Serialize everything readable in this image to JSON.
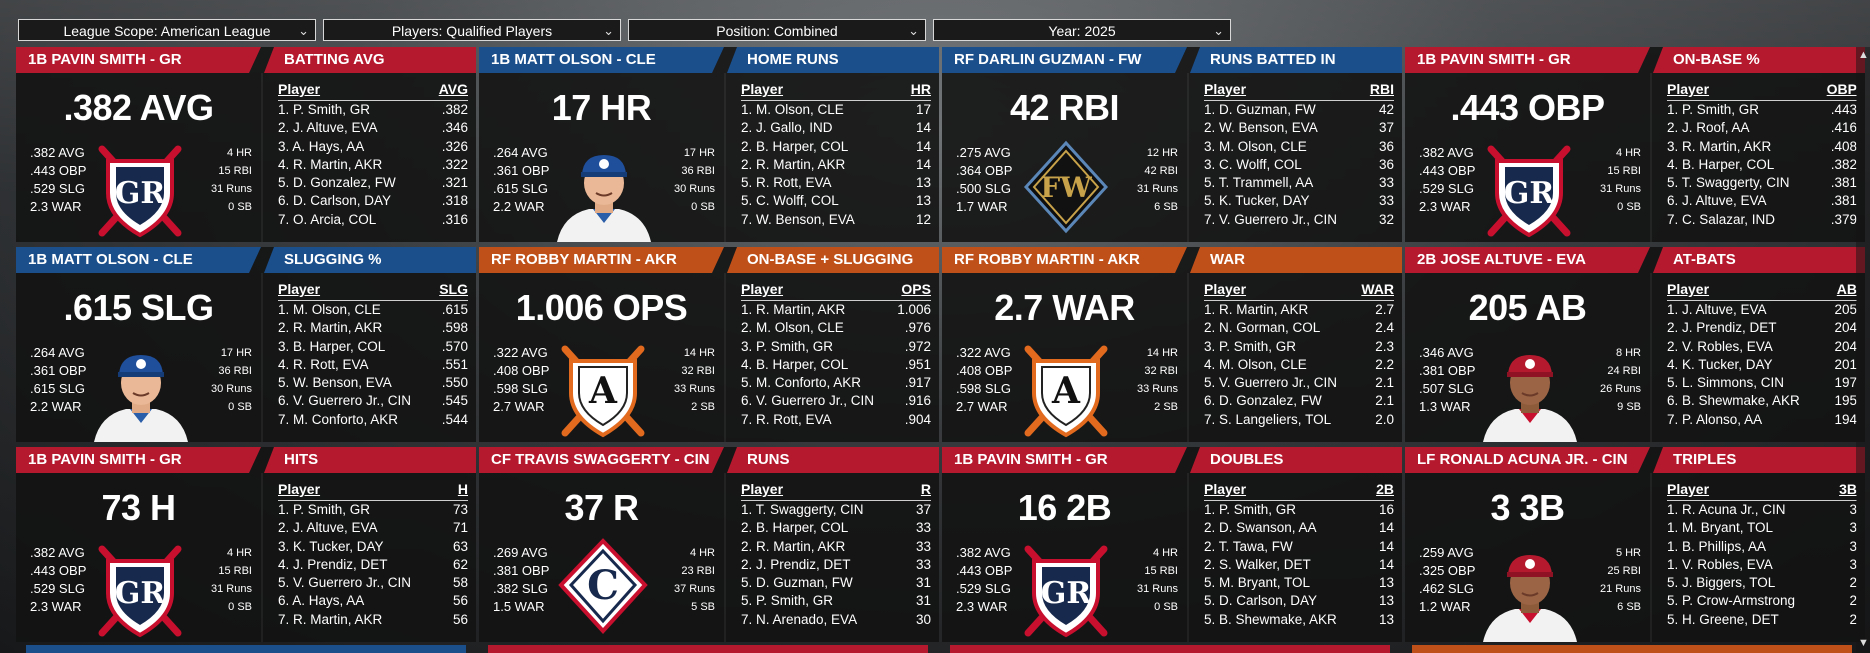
{
  "filters": {
    "league_scope": "League Scope: American League",
    "players": "Players: Qualified Players",
    "position": "Position: Combined",
    "year": "Year: 2025"
  },
  "colors": {
    "red": "#b5192e",
    "blue": "#1a4f8c",
    "orange": "#c0501a",
    "gr_navy": "#17294d",
    "gr_red": "#c8102e"
  },
  "cards": [
    {
      "player_header": "1B PAVIN SMITH - GR",
      "category": "BATTING AVG",
      "big_stat": ".382 AVG",
      "stats_left": [
        ".382 AVG",
        ".443 OBP",
        ".529 SLG",
        "2.3 WAR"
      ],
      "stats_right": [
        "4 HR",
        "15 RBI",
        "31 Runs",
        "0 SB"
      ],
      "stat_col": "AVG",
      "logo": "GR",
      "header_color": "red",
      "leaders": [
        [
          "1. P. Smith, GR",
          ".382"
        ],
        [
          "2. J. Altuve, EVA",
          ".346"
        ],
        [
          "3. A. Hays, AA",
          ".326"
        ],
        [
          "4. R. Martin, AKR",
          ".322"
        ],
        [
          "5. D. Gonzalez, FW",
          ".321"
        ],
        [
          "6. D. Carlson, DAY",
          ".318"
        ],
        [
          "7. O. Arcia, COL",
          ".316"
        ]
      ]
    },
    {
      "player_header": "1B MATT OLSON - CLE",
      "category": "HOME RUNS",
      "big_stat": "17 HR",
      "stats_left": [
        ".264 AVG",
        ".361 OBP",
        ".615 SLG",
        "2.2 WAR"
      ],
      "stats_right": [
        "17 HR",
        "36 RBI",
        "30 Runs",
        "0 SB"
      ],
      "stat_col": "HR",
      "logo": "face-blue",
      "header_color": "blue",
      "leaders": [
        [
          "1. M. Olson, CLE",
          "17"
        ],
        [
          "2. J. Gallo, IND",
          "14"
        ],
        [
          "2. B. Harper, COL",
          "14"
        ],
        [
          "2. R. Martin, AKR",
          "14"
        ],
        [
          "5. R. Rott, EVA",
          "13"
        ],
        [
          "5. C. Wolff, COL",
          "13"
        ],
        [
          "7. W. Benson, EVA",
          "12"
        ]
      ]
    },
    {
      "player_header": "RF DARLIN GUZMAN - FW",
      "category": "RUNS BATTED IN",
      "big_stat": "42 RBI",
      "stats_left": [
        ".275 AVG",
        ".364 OBP",
        ".500 SLG",
        "1.7 WAR"
      ],
      "stats_right": [
        "12 HR",
        "42 RBI",
        "31 Runs",
        "6 SB"
      ],
      "stat_col": "RBI",
      "logo": "FW",
      "header_color": "blue",
      "leaders": [
        [
          "1. D. Guzman, FW",
          "42"
        ],
        [
          "2. W. Benson, EVA",
          "37"
        ],
        [
          "3. M. Olson, CLE",
          "36"
        ],
        [
          "3. C. Wolff, COL",
          "36"
        ],
        [
          "5. T. Trammell, AA",
          "33"
        ],
        [
          "5. K. Tucker, DAY",
          "33"
        ],
        [
          "7. V. Guerrero Jr., CIN",
          "32"
        ]
      ]
    },
    {
      "player_header": "1B PAVIN SMITH - GR",
      "category": "ON-BASE %",
      "big_stat": ".443 OBP",
      "stats_left": [
        ".382 AVG",
        ".443 OBP",
        ".529 SLG",
        "2.3 WAR"
      ],
      "stats_right": [
        "4 HR",
        "15 RBI",
        "31 Runs",
        "0 SB"
      ],
      "stat_col": "OBP",
      "logo": "GR",
      "header_color": "red",
      "leaders": [
        [
          "1. P. Smith, GR",
          ".443"
        ],
        [
          "2. J. Roof, AA",
          ".416"
        ],
        [
          "3. R. Martin, AKR",
          ".408"
        ],
        [
          "4. B. Harper, COL",
          ".382"
        ],
        [
          "5. T. Swaggerty, CIN",
          ".381"
        ],
        [
          "6. J. Altuve, EVA",
          ".381"
        ],
        [
          "7. C. Salazar, IND",
          ".379"
        ]
      ]
    },
    {
      "player_header": "1B MATT OLSON - CLE",
      "category": "SLUGGING %",
      "big_stat": ".615 SLG",
      "stats_left": [
        ".264 AVG",
        ".361 OBP",
        ".615 SLG",
        "2.2 WAR"
      ],
      "stats_right": [
        "17 HR",
        "36 RBI",
        "30 Runs",
        "0 SB"
      ],
      "stat_col": "SLG",
      "logo": "face-blue",
      "header_color": "blue",
      "leaders": [
        [
          "1. M. Olson, CLE",
          ".615"
        ],
        [
          "2. R. Martin, AKR",
          ".598"
        ],
        [
          "3. B. Harper, COL",
          ".570"
        ],
        [
          "4. R. Rott, EVA",
          ".551"
        ],
        [
          "5. W. Benson, EVA",
          ".550"
        ],
        [
          "6. V. Guerrero Jr., CIN",
          ".545"
        ],
        [
          "7. M. Conforto, AKR",
          ".544"
        ]
      ]
    },
    {
      "player_header": "RF ROBBY MARTIN - AKR",
      "category": "ON-BASE + SLUGGING",
      "big_stat": "1.006 OPS",
      "stats_left": [
        ".322 AVG",
        ".408 OBP",
        ".598 SLG",
        "2.7 WAR"
      ],
      "stats_right": [
        "14 HR",
        "32 RBI",
        "33 Runs",
        "2 SB"
      ],
      "stat_col": "OPS",
      "logo": "A",
      "header_color": "orange",
      "leaders": [
        [
          "1. R. Martin, AKR",
          "1.006"
        ],
        [
          "2. M. Olson, CLE",
          ".976"
        ],
        [
          "3. P. Smith, GR",
          ".972"
        ],
        [
          "4. B. Harper, COL",
          ".951"
        ],
        [
          "5. M. Conforto, AKR",
          ".917"
        ],
        [
          "6. V. Guerrero Jr., CIN",
          ".916"
        ],
        [
          "7. R. Rott, EVA",
          ".904"
        ]
      ]
    },
    {
      "player_header": "RF ROBBY MARTIN - AKR",
      "category": "WAR",
      "big_stat": "2.7 WAR",
      "stats_left": [
        ".322 AVG",
        ".408 OBP",
        ".598 SLG",
        "2.7 WAR"
      ],
      "stats_right": [
        "14 HR",
        "32 RBI",
        "33 Runs",
        "2 SB"
      ],
      "stat_col": "WAR",
      "logo": "A",
      "header_color": "orange",
      "leaders": [
        [
          "1. R. Martin, AKR",
          "2.7"
        ],
        [
          "2. N. Gorman, COL",
          "2.4"
        ],
        [
          "3. P. Smith, GR",
          "2.3"
        ],
        [
          "4. M. Olson, CLE",
          "2.2"
        ],
        [
          "5. V. Guerrero Jr., CIN",
          "2.1"
        ],
        [
          "6. D. Gonzalez, FW",
          "2.1"
        ],
        [
          "7. S. Langeliers, TOL",
          "2.0"
        ]
      ]
    },
    {
      "player_header": "2B JOSE ALTUVE - EVA",
      "category": "AT-BATS",
      "big_stat": "205 AB",
      "stats_left": [
        ".346 AVG",
        ".381 OBP",
        ".507 SLG",
        "1.3 WAR"
      ],
      "stats_right": [
        "8 HR",
        "24 RBI",
        "26 Runs",
        "9 SB"
      ],
      "stat_col": "AB",
      "logo": "face-red",
      "header_color": "red",
      "leaders": [
        [
          "1. J. Altuve, EVA",
          "205"
        ],
        [
          "2. J. Prendiz, DET",
          "204"
        ],
        [
          "2. V. Robles, EVA",
          "204"
        ],
        [
          "4. K. Tucker, DAY",
          "201"
        ],
        [
          "5. L. Simmons, CIN",
          "197"
        ],
        [
          "6. B. Shewmake, AKR",
          "195"
        ],
        [
          "7. P. Alonso, AA",
          "194"
        ]
      ]
    },
    {
      "player_header": "1B PAVIN SMITH - GR",
      "category": "HITS",
      "big_stat": "73 H",
      "stats_left": [
        ".382 AVG",
        ".443 OBP",
        ".529 SLG",
        "2.3 WAR"
      ],
      "stats_right": [
        "4 HR",
        "15 RBI",
        "31 Runs",
        "0 SB"
      ],
      "stat_col": "H",
      "logo": "GR",
      "header_color": "red",
      "leaders": [
        [
          "1. P. Smith, GR",
          "73"
        ],
        [
          "2. J. Altuve, EVA",
          "71"
        ],
        [
          "3. K. Tucker, DAY",
          "63"
        ],
        [
          "4. J. Prendiz, DET",
          "62"
        ],
        [
          "5. V. Guerrero Jr., CIN",
          "58"
        ],
        [
          "6. A. Hays, AA",
          "56"
        ],
        [
          "7. R. Martin, AKR",
          "56"
        ]
      ]
    },
    {
      "player_header": "CF TRAVIS SWAGGERTY - CIN",
      "category": "RUNS",
      "big_stat": "37 R",
      "stats_left": [
        ".269 AVG",
        ".381 OBP",
        ".382 SLG",
        "1.5 WAR"
      ],
      "stats_right": [
        "4 HR",
        "23 RBI",
        "37 Runs",
        "5 SB"
      ],
      "stat_col": "R",
      "logo": "C",
      "header_color": "red",
      "leaders": [
        [
          "1. T. Swaggerty, CIN",
          "37"
        ],
        [
          "2. B. Harper, COL",
          "33"
        ],
        [
          "2. R. Martin, AKR",
          "33"
        ],
        [
          "2. J. Prendiz, DET",
          "33"
        ],
        [
          "5. D. Guzman, FW",
          "31"
        ],
        [
          "5. P. Smith, GR",
          "31"
        ],
        [
          "7. N. Arenado, EVA",
          "30"
        ]
      ]
    },
    {
      "player_header": "1B PAVIN SMITH - GR",
      "category": "DOUBLES",
      "big_stat": "16 2B",
      "stats_left": [
        ".382 AVG",
        ".443 OBP",
        ".529 SLG",
        "2.3 WAR"
      ],
      "stats_right": [
        "4 HR",
        "15 RBI",
        "31 Runs",
        "0 SB"
      ],
      "stat_col": "2B",
      "logo": "GR",
      "header_color": "red",
      "leaders": [
        [
          "1. P. Smith, GR",
          "16"
        ],
        [
          "2. D. Swanson, AA",
          "14"
        ],
        [
          "2. T. Tawa, FW",
          "14"
        ],
        [
          "2. S. Walker, DET",
          "14"
        ],
        [
          "5. M. Bryant, TOL",
          "13"
        ],
        [
          "5. D. Carlson, DAY",
          "13"
        ],
        [
          "5. B. Shewmake, AKR",
          "13"
        ]
      ]
    },
    {
      "player_header": "LF RONALD ACUNA JR. - CIN",
      "category": "TRIPLES",
      "big_stat": "3 3B",
      "stats_left": [
        ".259 AVG",
        ".325 OBP",
        ".462 SLG",
        "1.2 WAR"
      ],
      "stats_right": [
        "5 HR",
        "25 RBI",
        "21 Runs",
        "6 SB"
      ],
      "stat_col": "3B",
      "logo": "face-red",
      "header_color": "red",
      "leaders": [
        [
          "1. R. Acuna Jr., CIN",
          "3"
        ],
        [
          "1. M. Bryant, TOL",
          "3"
        ],
        [
          "1. B. Phillips, AA",
          "3"
        ],
        [
          "1. V. Robles, EVA",
          "3"
        ],
        [
          "5. J. Biggers, TOL",
          "2"
        ],
        [
          "5. P. Crow-Armstrong",
          "2"
        ],
        [
          "5. H. Greene, DET",
          "2"
        ]
      ]
    }
  ],
  "labels": {
    "player_col": "Player"
  }
}
